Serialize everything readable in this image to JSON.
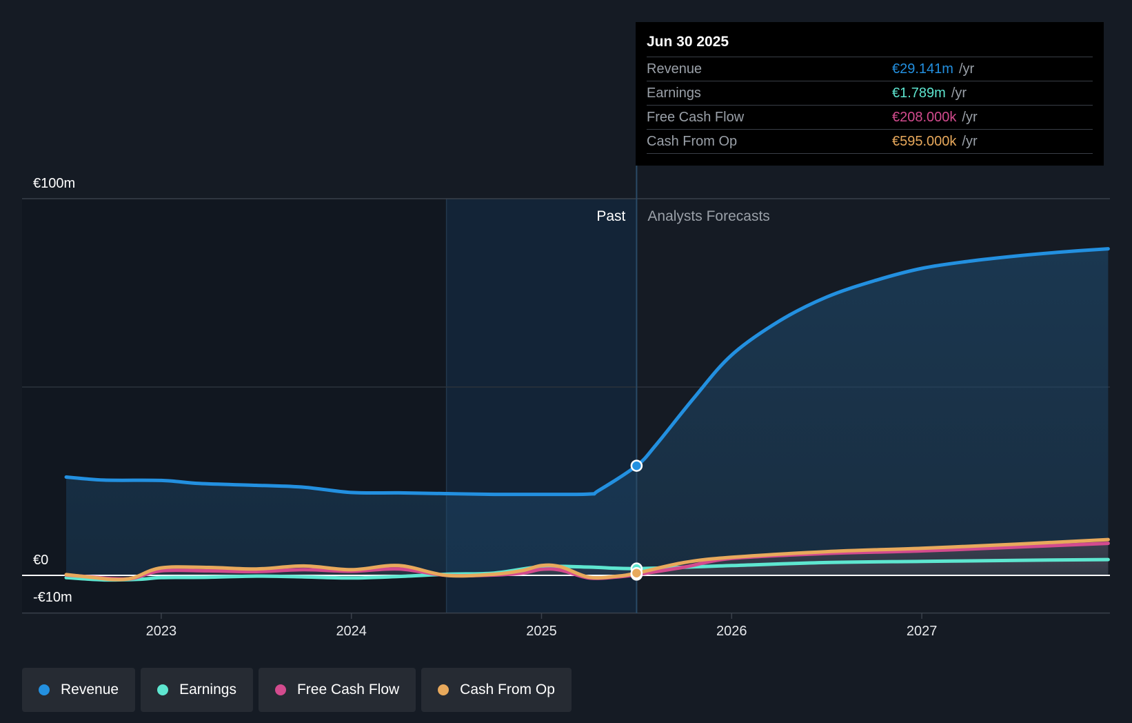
{
  "chart_data": {
    "type": "area",
    "currency": "€",
    "ylim": [
      -10,
      100
    ],
    "y_ticks": [
      {
        "value": 100,
        "label": "€100m"
      },
      {
        "value": 0,
        "label": "€0"
      },
      {
        "value": -10,
        "label": "-€10m"
      }
    ],
    "x_ticks": [
      {
        "value": 2023,
        "label": "2023"
      },
      {
        "value": 2024,
        "label": "2024"
      },
      {
        "value": 2025,
        "label": "2025"
      },
      {
        "value": 2026,
        "label": "2026"
      },
      {
        "value": 2027,
        "label": "2027"
      }
    ],
    "xlim": [
      2022.25,
      2027.98
    ],
    "past_start": 2024.5,
    "divider_x": 2025.5,
    "regions": {
      "past": "Past",
      "forecast": "Analysts Forecasts"
    },
    "series": [
      {
        "name": "Revenue",
        "color": "#2390e0",
        "x": [
          2022.5,
          2022.7,
          2023.0,
          2023.2,
          2023.5,
          2023.75,
          2024.0,
          2024.25,
          2024.5,
          2024.75,
          2025.0,
          2025.25,
          2025.3,
          2025.5,
          2025.6,
          2025.8,
          2026.0,
          2026.25,
          2026.5,
          2026.75,
          2027.0,
          2027.25,
          2027.5,
          2027.75,
          2027.98
        ],
        "y": [
          26.1,
          25.3,
          25.2,
          24.4,
          23.9,
          23.4,
          22.0,
          21.9,
          21.7,
          21.5,
          21.5,
          21.6,
          22.5,
          29.1,
          34.5,
          47.0,
          58.5,
          67.5,
          73.9,
          78.2,
          81.5,
          83.4,
          84.8,
          85.9,
          86.7
        ]
      },
      {
        "name": "Earnings",
        "color": "#5ee6d0",
        "x": [
          2022.5,
          2022.7,
          2022.9,
          2023.0,
          2023.25,
          2023.5,
          2023.75,
          2024.0,
          2024.25,
          2024.5,
          2024.75,
          2025.0,
          2025.25,
          2025.5,
          2026.0,
          2026.5,
          2027.0,
          2027.5,
          2027.98
        ],
        "y": [
          -0.6,
          -1.2,
          -1.0,
          -0.6,
          -0.5,
          -0.2,
          -0.4,
          -0.7,
          -0.3,
          0.3,
          0.6,
          2.3,
          2.2,
          1.8,
          2.6,
          3.4,
          3.7,
          4.0,
          4.2
        ]
      },
      {
        "name": "Free Cash Flow",
        "color": "#d34b8e",
        "x": [
          2022.5,
          2022.65,
          2022.75,
          2022.85,
          2023.0,
          2023.25,
          2023.5,
          2023.75,
          2024.0,
          2024.25,
          2024.5,
          2024.75,
          2024.9,
          2025.0,
          2025.1,
          2025.25,
          2025.4,
          2025.5,
          2025.75,
          2026.0,
          2026.5,
          2027.0,
          2027.5,
          2027.98
        ],
        "y": [
          0.1,
          -0.5,
          -0.9,
          -0.8,
          1.2,
          1.2,
          1.0,
          1.5,
          1.1,
          1.7,
          0.0,
          0.1,
          0.6,
          1.6,
          1.4,
          -0.7,
          -0.4,
          0.2,
          2.2,
          4.5,
          5.8,
          6.5,
          7.5,
          8.5
        ]
      },
      {
        "name": "Cash From Op",
        "color": "#e8a95c",
        "x": [
          2022.5,
          2022.65,
          2022.75,
          2022.85,
          2023.0,
          2023.25,
          2023.5,
          2023.75,
          2024.0,
          2024.25,
          2024.5,
          2024.75,
          2024.9,
          2025.0,
          2025.1,
          2025.25,
          2025.4,
          2025.5,
          2025.75,
          2026.0,
          2026.5,
          2027.0,
          2027.5,
          2027.98
        ],
        "y": [
          0.2,
          -0.6,
          -1.1,
          -0.7,
          2.0,
          2.1,
          1.7,
          2.5,
          1.5,
          2.6,
          0.0,
          0.3,
          1.3,
          2.6,
          2.3,
          -0.5,
          -0.2,
          0.6,
          3.4,
          4.8,
          6.3,
          7.2,
          8.3,
          9.5
        ]
      }
    ],
    "highlight": {
      "date": "Jun 30 2025",
      "x": 2025.5
    }
  },
  "tooltip": {
    "date": "Jun 30 2025",
    "rows": [
      {
        "name": "Revenue",
        "value": "€29.141m",
        "unit": "/yr",
        "color": "#2390e0"
      },
      {
        "name": "Earnings",
        "value": "€1.789m",
        "unit": "/yr",
        "color": "#5ee6d0"
      },
      {
        "name": "Free Cash Flow",
        "value": "€208.000k",
        "unit": "/yr",
        "color": "#d34b8e"
      },
      {
        "name": "Cash From Op",
        "value": "€595.000k",
        "unit": "/yr",
        "color": "#e8a95c"
      }
    ]
  },
  "legend": [
    {
      "label": "Revenue",
      "color": "#2390e0"
    },
    {
      "label": "Earnings",
      "color": "#5ee6d0"
    },
    {
      "label": "Free Cash Flow",
      "color": "#d34b8e"
    },
    {
      "label": "Cash From Op",
      "color": "#e8a95c"
    }
  ]
}
